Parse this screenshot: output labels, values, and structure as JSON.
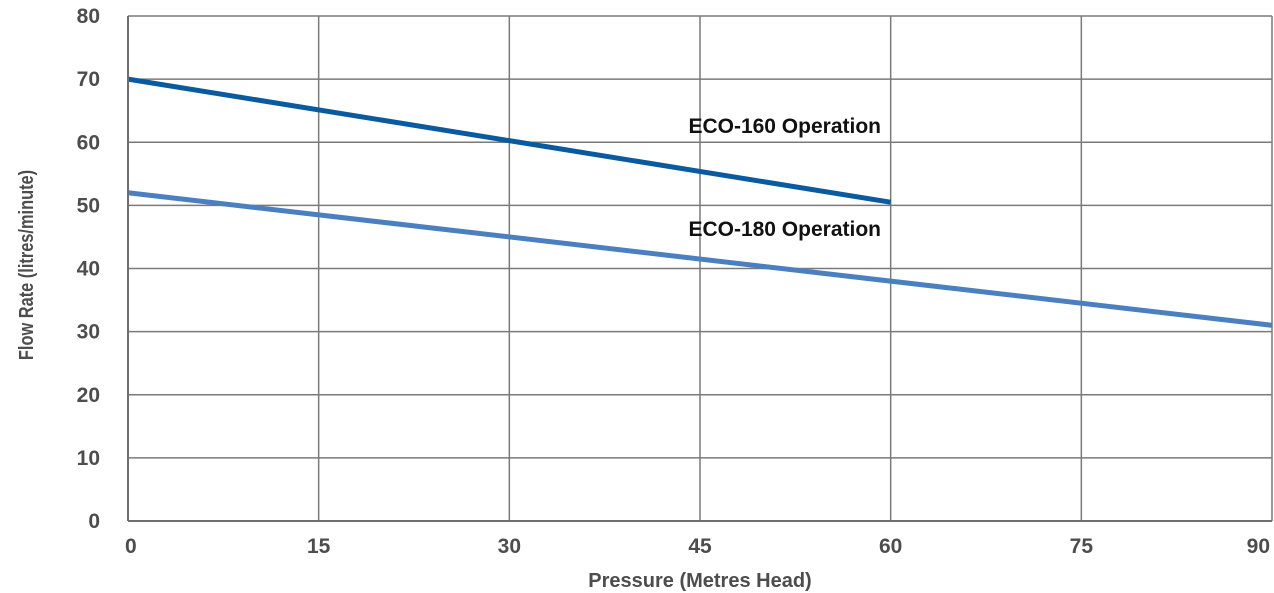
{
  "chart_data": {
    "type": "line",
    "title": "",
    "xlabel": "Pressure (Metres Head)",
    "ylabel": "Flow Rate (litres/minute)",
    "xlim": [
      0,
      90
    ],
    "ylim": [
      0,
      80
    ],
    "x_ticks": [
      0,
      15,
      30,
      45,
      60,
      75,
      90
    ],
    "y_ticks": [
      0,
      10,
      20,
      30,
      40,
      50,
      60,
      70,
      80
    ],
    "grid": true,
    "series": [
      {
        "name": "ECO-160 Operation",
        "color": "#0a5aa0",
        "x": [
          0,
          60
        ],
        "y": [
          70,
          50.5
        ]
      },
      {
        "name": "ECO-180 Operation",
        "color": "#4a80c0",
        "x": [
          0,
          90
        ],
        "y": [
          52,
          31
        ]
      }
    ]
  }
}
